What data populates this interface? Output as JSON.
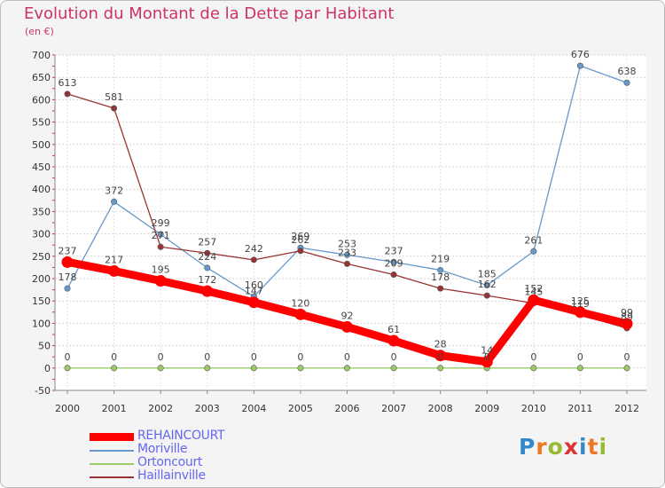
{
  "chart_data": {
    "type": "line",
    "title": "Evolution du Montant de la Dette par Habitant",
    "subtitle": "(en €)",
    "x": [
      "2000",
      "2001",
      "2002",
      "2003",
      "2004",
      "2005",
      "2006",
      "2007",
      "2008",
      "2009",
      "2010",
      "2011",
      "2012"
    ],
    "ylim": [
      -50,
      700
    ],
    "yticks": [
      -50,
      0,
      50,
      100,
      150,
      200,
      250,
      300,
      350,
      400,
      450,
      500,
      550,
      600,
      650,
      700
    ],
    "grid": "horizontal-dashed",
    "legend_position": "bottom-left",
    "series": [
      {
        "name": "REHAINCOURT",
        "color": "#ff0000",
        "values": [
          237,
          217,
          195,
          172,
          147,
          120,
          92,
          61,
          28,
          14,
          152,
          125,
          99
        ]
      },
      {
        "name": "Moriville",
        "color": "#6699cc",
        "values": [
          178,
          372,
          299,
          224,
          160,
          269,
          253,
          237,
          219,
          185,
          261,
          676,
          638
        ]
      },
      {
        "name": "Ortoncourt",
        "color": "#99cc66",
        "values": [
          0,
          0,
          0,
          0,
          0,
          0,
          0,
          0,
          0,
          0,
          0,
          0,
          0
        ]
      },
      {
        "name": "Haillainville",
        "color": "#993333",
        "values": [
          613,
          581,
          271,
          257,
          242,
          262,
          233,
          209,
          178,
          162,
          145,
          119,
          89
        ]
      }
    ]
  },
  "logo": {
    "letters": [
      "P",
      "r",
      "o",
      "x",
      "i",
      "t",
      "i"
    ],
    "colors": [
      "#3388cc",
      "#ee7722",
      "#99bb33",
      "#dd3333",
      "#3388cc",
      "#ee7722",
      "#99bb33"
    ]
  }
}
